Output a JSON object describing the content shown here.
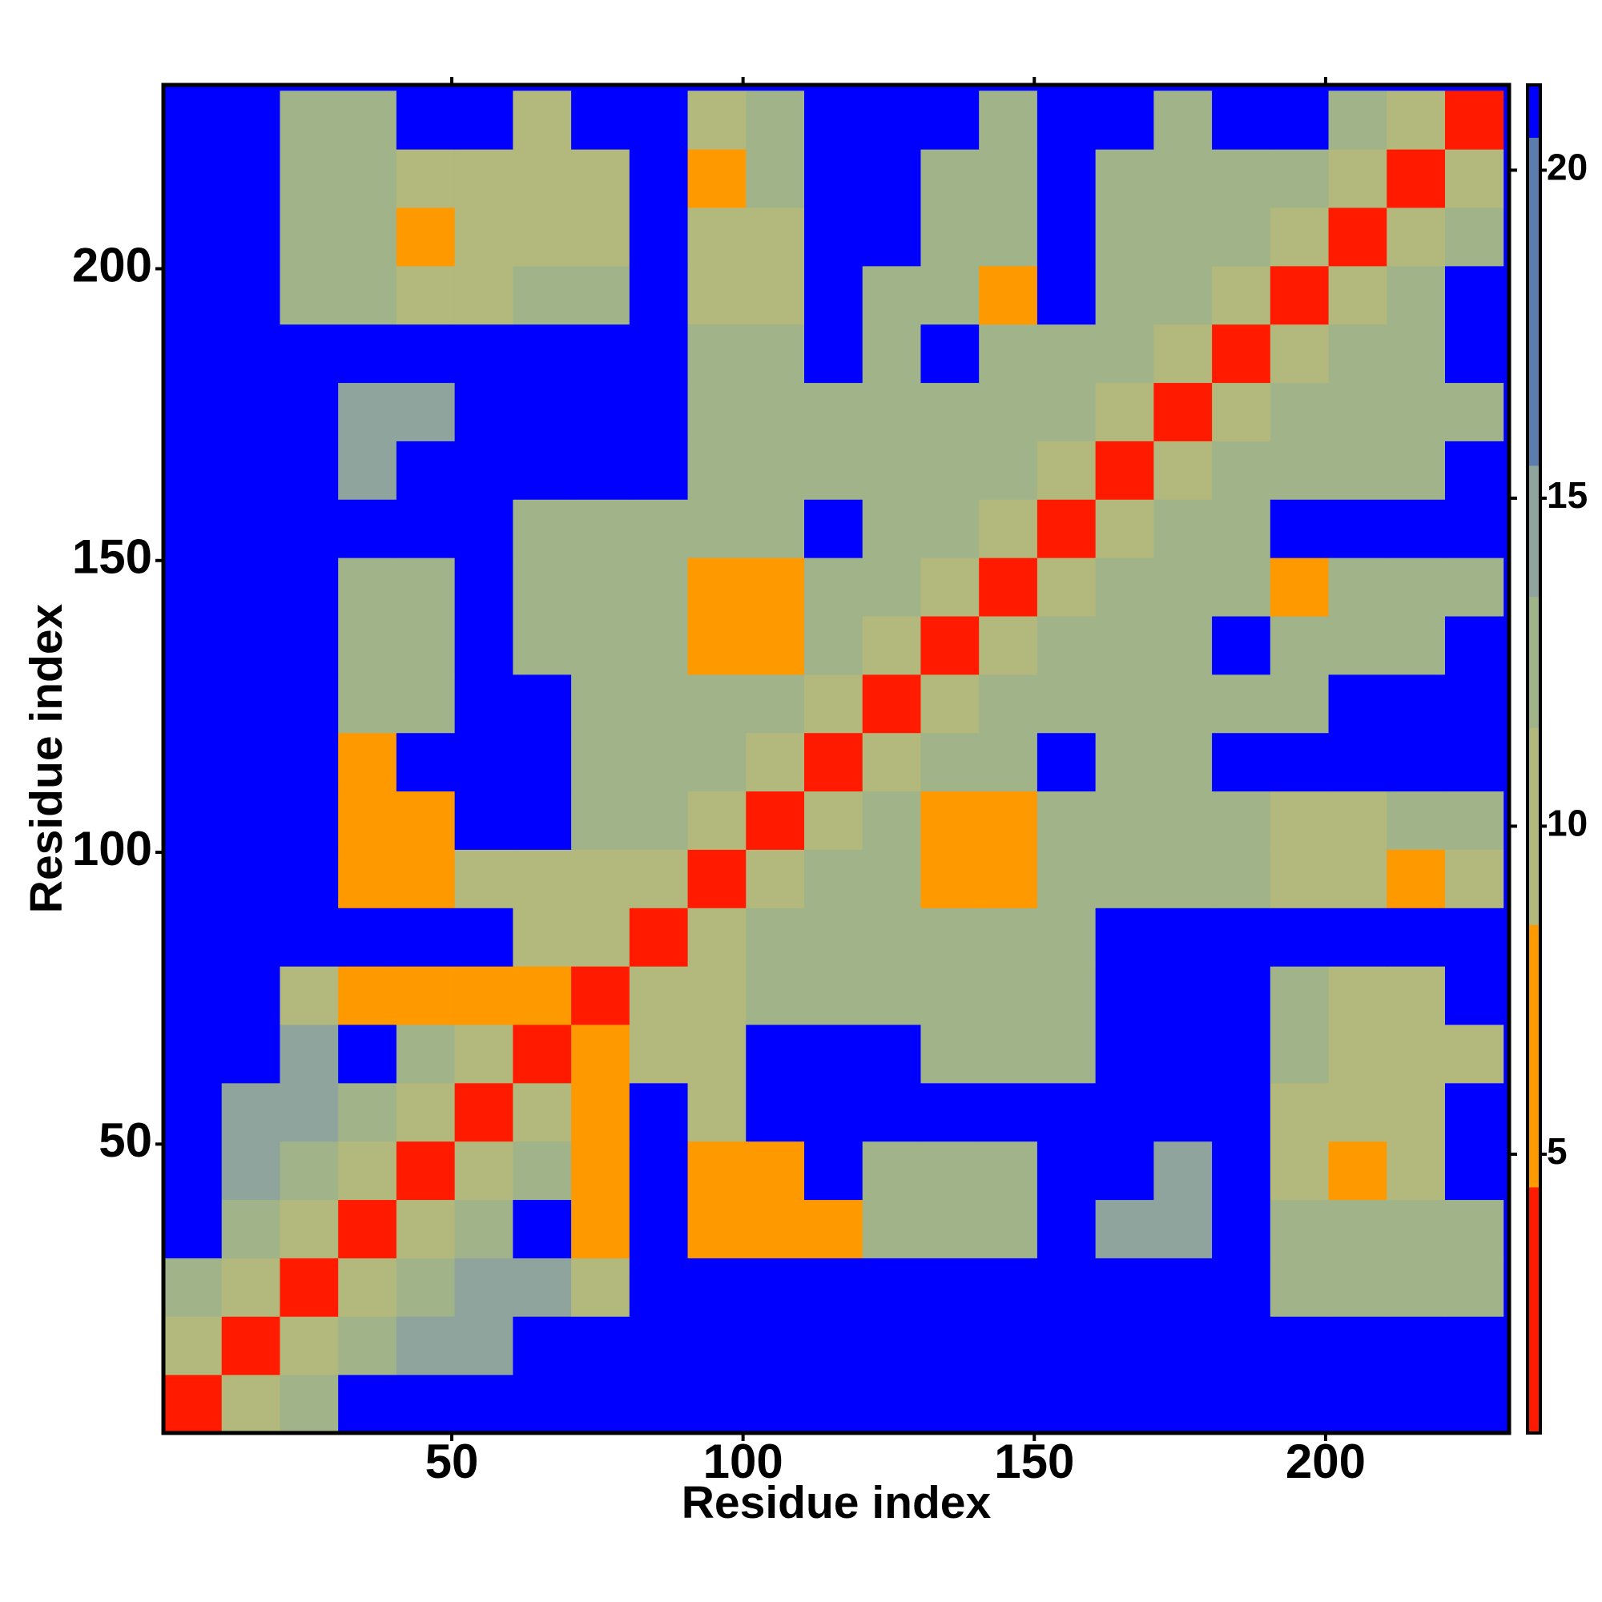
{
  "chart_data": {
    "type": "heatmap",
    "xlabel": "Residue index",
    "ylabel": "Residue index",
    "xlim": [
      0.5,
      231.5
    ],
    "ylim": [
      0.5,
      231.5
    ],
    "xticks": [
      50,
      100,
      150,
      200
    ],
    "yticks": [
      50,
      100,
      150,
      200
    ],
    "xbins": [
      0.5,
      10.5,
      20.5,
      30.5,
      40.5,
      50.5,
      60.5,
      70.5,
      80.5,
      90.5,
      100.5,
      110.5,
      120.5,
      130.5,
      140.5,
      150.5,
      160.5,
      170.5,
      180.5,
      190.5,
      200.5,
      210.5,
      220.5,
      230.5
    ],
    "ybins": [
      0.5,
      10.5,
      20.5,
      30.5,
      40.5,
      50.5,
      60.5,
      70.5,
      80.5,
      90.5,
      100.5,
      110.5,
      120.5,
      130.5,
      140.5,
      150.5,
      160.5,
      170.5,
      180.5,
      190.5,
      200.5,
      210.5,
      220.5,
      230.5
    ],
    "z": [
      [
        3,
        9,
        13,
        21,
        21,
        21,
        21,
        21,
        21,
        21,
        21,
        21,
        21,
        21,
        21,
        21,
        21,
        21,
        21,
        21,
        21,
        21,
        21
      ],
      [
        9,
        3,
        9,
        12,
        14,
        14,
        21,
        21,
        21,
        21,
        21,
        21,
        21,
        21,
        21,
        21,
        21,
        21,
        21,
        21,
        21,
        21,
        21
      ],
      [
        13,
        9,
        3,
        9,
        12,
        14,
        14,
        10,
        21,
        21,
        21,
        21,
        21,
        21,
        21,
        21,
        21,
        21,
        21,
        12,
        12,
        12,
        12
      ],
      [
        21,
        12,
        9,
        3,
        9,
        12,
        21,
        7,
        21,
        7,
        8,
        8,
        12,
        12,
        12,
        21,
        15,
        15,
        21,
        12,
        12,
        12,
        12
      ],
      [
        21,
        14,
        12,
        9,
        3,
        9,
        12,
        7,
        21,
        8,
        8,
        21,
        12,
        12,
        12,
        21,
        21,
        15,
        21,
        11,
        8,
        11,
        21
      ],
      [
        21,
        14,
        14,
        12,
        9,
        3,
        9,
        8,
        21,
        11,
        21,
        21,
        21,
        21,
        21,
        21,
        21,
        21,
        21,
        11,
        11,
        11,
        21
      ],
      [
        21,
        21,
        14,
        21,
        12,
        9,
        3,
        6,
        11,
        11,
        21,
        21,
        21,
        12,
        13,
        13,
        21,
        21,
        21,
        12,
        11,
        11,
        11
      ],
      [
        21,
        21,
        10,
        7,
        7,
        8,
        6,
        3,
        9,
        11,
        13,
        13,
        12,
        12,
        13,
        13,
        21,
        21,
        21,
        12,
        11,
        11,
        21
      ],
      [
        21,
        21,
        21,
        21,
        21,
        21,
        11,
        9,
        3,
        9,
        12,
        12,
        12,
        12,
        13,
        13,
        21,
        21,
        21,
        21,
        21,
        21,
        21
      ],
      [
        21,
        21,
        21,
        7,
        8,
        11,
        11,
        11,
        9,
        3,
        9,
        13,
        12,
        7,
        7,
        12,
        12,
        12,
        12,
        11,
        11,
        8,
        11
      ],
      [
        21,
        21,
        21,
        8,
        8,
        21,
        21,
        13,
        12,
        9,
        3,
        9,
        13,
        8,
        7,
        12,
        12,
        12,
        12,
        11,
        11,
        12,
        12
      ],
      [
        21,
        21,
        21,
        8,
        21,
        21,
        21,
        13,
        12,
        13,
        9,
        3,
        9,
        12,
        12,
        21,
        13,
        13,
        21,
        21,
        21,
        21,
        21
      ],
      [
        21,
        21,
        21,
        12,
        12,
        21,
        21,
        12,
        12,
        12,
        13,
        9,
        3,
        9,
        12,
        12,
        12,
        13,
        12,
        12,
        21,
        21,
        21
      ],
      [
        21,
        21,
        21,
        12,
        12,
        21,
        12,
        12,
        12,
        7,
        8,
        12,
        9,
        3,
        9,
        13,
        13,
        13,
        21,
        12,
        12,
        12,
        21
      ],
      [
        21,
        21,
        21,
        12,
        12,
        21,
        13,
        13,
        13,
        7,
        7,
        12,
        12,
        9,
        3,
        9,
        12,
        12,
        13,
        7,
        12,
        12,
        12
      ],
      [
        21,
        21,
        21,
        21,
        21,
        21,
        13,
        13,
        13,
        12,
        12,
        21,
        12,
        13,
        9,
        3,
        9,
        12,
        12,
        21,
        21,
        21,
        21
      ],
      [
        21,
        21,
        21,
        15,
        21,
        21,
        21,
        21,
        21,
        12,
        12,
        13,
        12,
        13,
        12,
        9,
        3,
        9,
        12,
        13,
        13,
        13,
        21
      ],
      [
        21,
        21,
        21,
        15,
        15,
        21,
        21,
        21,
        21,
        12,
        12,
        13,
        13,
        13,
        12,
        12,
        9,
        3,
        9,
        12,
        12,
        12,
        13
      ],
      [
        21,
        21,
        21,
        21,
        21,
        21,
        21,
        21,
        21,
        12,
        12,
        21,
        12,
        21,
        13,
        12,
        12,
        9,
        3,
        9,
        12,
        12,
        21
      ],
      [
        21,
        21,
        12,
        12,
        11,
        11,
        12,
        12,
        21,
        11,
        11,
        21,
        12,
        12,
        7,
        21,
        13,
        12,
        9,
        3,
        9,
        12,
        21
      ],
      [
        21,
        21,
        12,
        12,
        8,
        11,
        11,
        11,
        21,
        11,
        11,
        21,
        21,
        12,
        12,
        21,
        13,
        12,
        12,
        9,
        3,
        9,
        12
      ],
      [
        21,
        21,
        12,
        12,
        11,
        11,
        11,
        11,
        21,
        8,
        12,
        21,
        21,
        12,
        12,
        21,
        13,
        12,
        12,
        12,
        9,
        3,
        9
      ],
      [
        21,
        21,
        12,
        12,
        21,
        21,
        11,
        21,
        21,
        11,
        12,
        21,
        21,
        21,
        12,
        21,
        21,
        13,
        21,
        21,
        12,
        9,
        3
      ]
    ],
    "colorbar": {
      "lim": [
        0.75,
        21.3
      ],
      "ticks": [
        5,
        10,
        15,
        20
      ],
      "bands": [
        {
          "from": 0.75,
          "to": 4.5,
          "color": "#ff1a00"
        },
        {
          "from": 4.5,
          "to": 8.5,
          "color": "#ff9900"
        },
        {
          "from": 8.5,
          "to": 11.5,
          "color": "#b3b87c"
        },
        {
          "from": 11.5,
          "to": 13.5,
          "color": "#a1b489"
        },
        {
          "from": 13.5,
          "to": 15.5,
          "color": "#8fa49c"
        },
        {
          "from": 15.5,
          "to": 20.5,
          "color": "#5c7cae"
        },
        {
          "from": 20.5,
          "to": 21.3,
          "color": "#0000ff"
        }
      ]
    }
  }
}
